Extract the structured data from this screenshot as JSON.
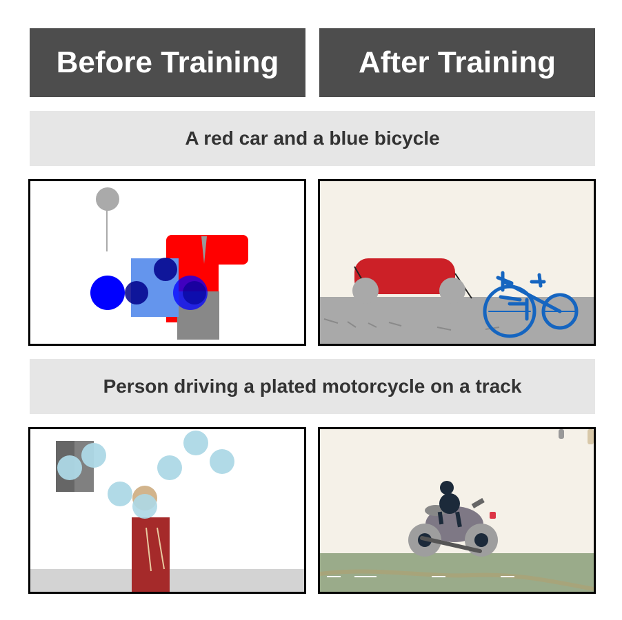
{
  "headers": {
    "before": "Before Training",
    "after": "After Training"
  },
  "rows": [
    {
      "caption": "A red car and a blue bicycle"
    },
    {
      "caption": "Person driving a plated motorcycle on a track"
    }
  ],
  "colors": {
    "header_bg": "#4d4d4d",
    "caption_bg": "#e6e6e6",
    "car_red": "#cc2027",
    "bike_blue": "#1565c0",
    "track_green": "#9aab8a",
    "after_bg": "#f5f1e8"
  }
}
